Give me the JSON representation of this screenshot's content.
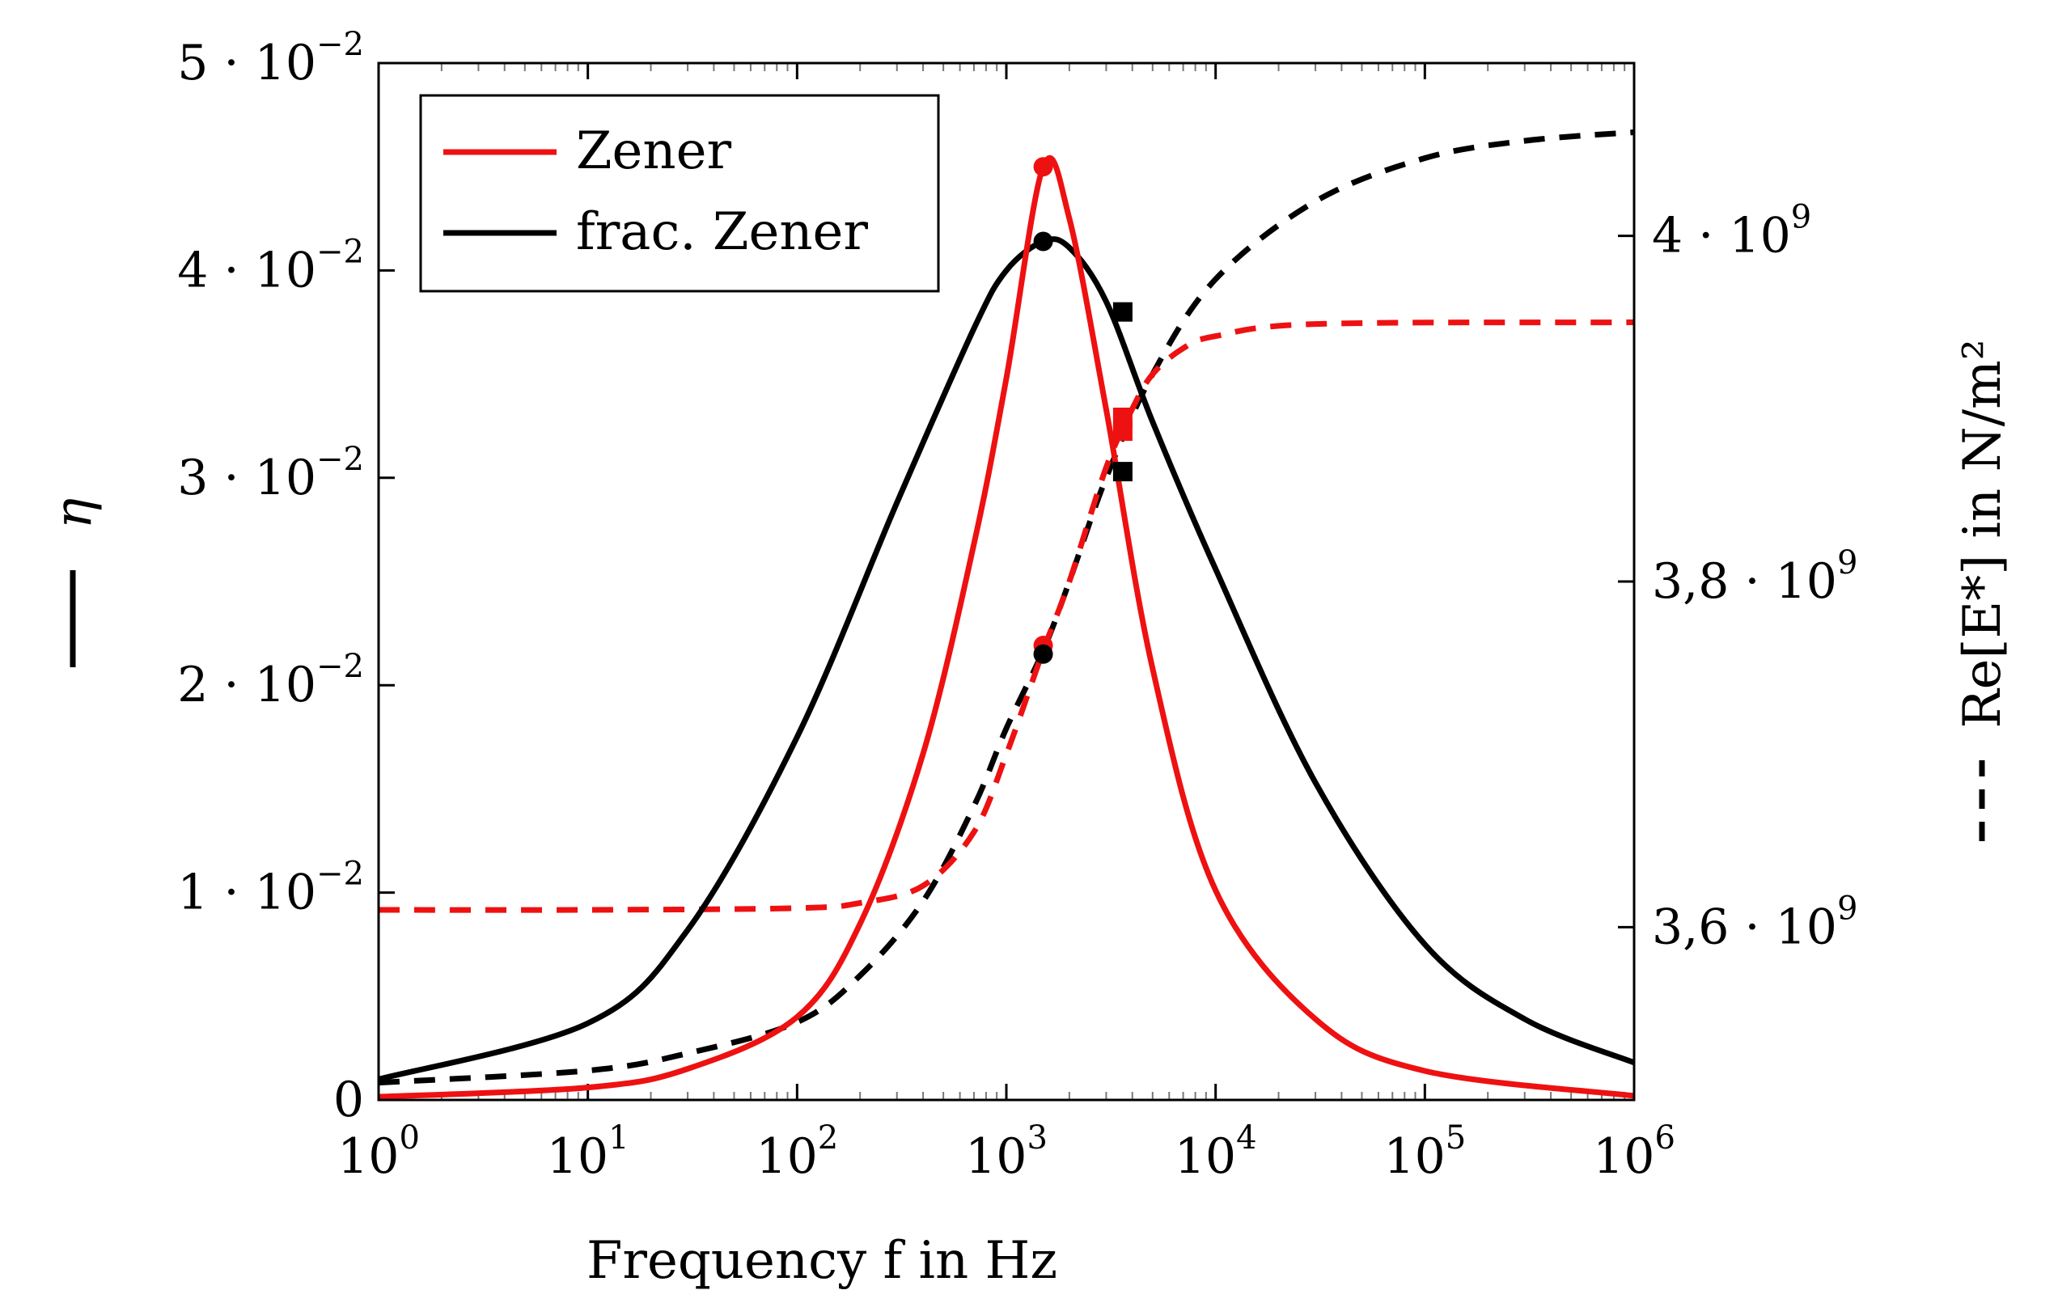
{
  "chart_data": {
    "type": "line",
    "xlabel": "Frequency f in Hz",
    "ylabel_left": "η",
    "ylabel_right": "Re[E*] in N/m²",
    "xscale": "log",
    "xlim": [
      1,
      1000000
    ],
    "ylim_left": [
      0,
      0.05
    ],
    "ylim_right": [
      3500000000.0,
      4100000000.0
    ],
    "x_ticks": [
      {
        "base": "10",
        "exp": "0",
        "value": 1
      },
      {
        "base": "10",
        "exp": "1",
        "value": 10
      },
      {
        "base": "10",
        "exp": "2",
        "value": 100
      },
      {
        "base": "10",
        "exp": "3",
        "value": 1000
      },
      {
        "base": "10",
        "exp": "4",
        "value": 10000
      },
      {
        "base": "10",
        "exp": "5",
        "value": 100000
      },
      {
        "base": "10",
        "exp": "6",
        "value": 1000000
      }
    ],
    "y_left_ticks": [
      {
        "label": "0",
        "value": 0
      },
      {
        "label": "1 · 10",
        "exp": "−2",
        "value": 0.01
      },
      {
        "label": "2 · 10",
        "exp": "−2",
        "value": 0.02
      },
      {
        "label": "3 · 10",
        "exp": "−2",
        "value": 0.03
      },
      {
        "label": "4 · 10",
        "exp": "−2",
        "value": 0.04
      },
      {
        "label": "5 · 10",
        "exp": "−2",
        "value": 0.05
      }
    ],
    "y_right_ticks": [
      {
        "label": "3,6 · 10",
        "exp": "9",
        "value": 3600000000.0
      },
      {
        "label": "3,8 · 10",
        "exp": "9",
        "value": 3800000000.0
      },
      {
        "label": "4 · 10",
        "exp": "9",
        "value": 4000000000.0
      }
    ],
    "legend": {
      "placement": "top-left",
      "entries": [
        "Zener",
        "frac. Zener"
      ]
    },
    "series": [
      {
        "name": "Zener",
        "quantity": "eta",
        "axis": "left",
        "color": "#ee1111",
        "style": "solid",
        "x": [
          1,
          10,
          30,
          100,
          200,
          400,
          700,
          1000,
          1500,
          2000,
          3000,
          5000,
          10000,
          30000,
          100000,
          1000000
        ],
        "y": [
          0.00015,
          0.0006,
          0.0015,
          0.004,
          0.0085,
          0.0167,
          0.0268,
          0.0348,
          0.045,
          0.0425,
          0.0333,
          0.0208,
          0.0101,
          0.0039,
          0.0014,
          0.0002
        ]
      },
      {
        "name": "frac. Zener",
        "quantity": "eta",
        "axis": "left",
        "color": "#000000",
        "style": "solid",
        "x": [
          1,
          10,
          30,
          100,
          300,
          700,
          1000,
          1500,
          2000,
          3000,
          5000,
          10000,
          30000,
          100000,
          300000,
          1000000
        ],
        "y": [
          0.001,
          0.0037,
          0.0082,
          0.0175,
          0.0288,
          0.0372,
          0.04,
          0.0414,
          0.0411,
          0.0385,
          0.0327,
          0.0256,
          0.0153,
          0.0075,
          0.0039,
          0.0018
        ]
      },
      {
        "name": "Zener Re[E*]",
        "quantity": "storage_modulus",
        "axis": "right",
        "color": "#ee1111",
        "style": "dashed",
        "x": [
          1,
          10,
          100,
          200,
          400,
          700,
          1000,
          1500,
          2000,
          3000,
          4000,
          5000,
          7000,
          10000,
          30000,
          1000000
        ],
        "y": [
          3610000000.0,
          3610000000.0,
          3611000000.0,
          3614000000.0,
          3624000000.0,
          3655000000.0,
          3700000000.0,
          3760000000.0,
          3800000000.0,
          3866000000.0,
          3900000000.0,
          3920000000.0,
          3935000000.0,
          3942000000.0,
          3949000000.0,
          3950000000.0
        ]
      },
      {
        "name": "frac. Zener Re[E*]",
        "quantity": "storage_modulus",
        "axis": "right",
        "color": "#000000",
        "style": "dashed",
        "x": [
          1,
          10,
          30,
          100,
          200,
          400,
          700,
          1000,
          1500,
          2000,
          3000,
          5000,
          10000,
          30000,
          100000,
          300000,
          1000000
        ],
        "y": [
          3510000000.0,
          3517000000.0,
          3527000000.0,
          3545000000.0,
          3572000000.0,
          3615000000.0,
          3670000000.0,
          3715000000.0,
          3760000000.0,
          3800000000.0,
          3860000000.0,
          3920000000.0,
          3975000000.0,
          4020000000.0,
          4045000000.0,
          4055000000.0,
          4060000000.0
        ]
      }
    ],
    "markers": [
      {
        "series": "Zener",
        "shape": "circle",
        "color": "#ee1111",
        "x": 1500,
        "y": 0.045,
        "axis": "left"
      },
      {
        "series": "frac. Zener",
        "shape": "circle",
        "color": "#000000",
        "x": 1500,
        "y": 0.0414,
        "axis": "left"
      },
      {
        "series": "Zener",
        "shape": "circle",
        "color": "#ee1111",
        "x": 1500,
        "y": 3763000000.0,
        "axis": "right"
      },
      {
        "series": "frac. Zener",
        "shape": "circle",
        "color": "#000000",
        "x": 1500,
        "y": 3758000000.0,
        "axis": "right"
      },
      {
        "series": "Zener",
        "shape": "square",
        "color": "#ee1111",
        "x": 3600,
        "y": 3895000000.0,
        "axis": "right"
      },
      {
        "series": "Zener",
        "shape": "square",
        "color": "#ee1111",
        "x": 3600,
        "y": 3887000000.0,
        "axis": "right"
      },
      {
        "series": "frac. Zener",
        "shape": "square",
        "color": "#000000",
        "x": 3600,
        "y": 0.038,
        "axis": "left"
      },
      {
        "series": "frac. Zener",
        "shape": "square",
        "color": "#000000",
        "x": 3600,
        "y": 0.0303,
        "axis": "left"
      }
    ]
  }
}
